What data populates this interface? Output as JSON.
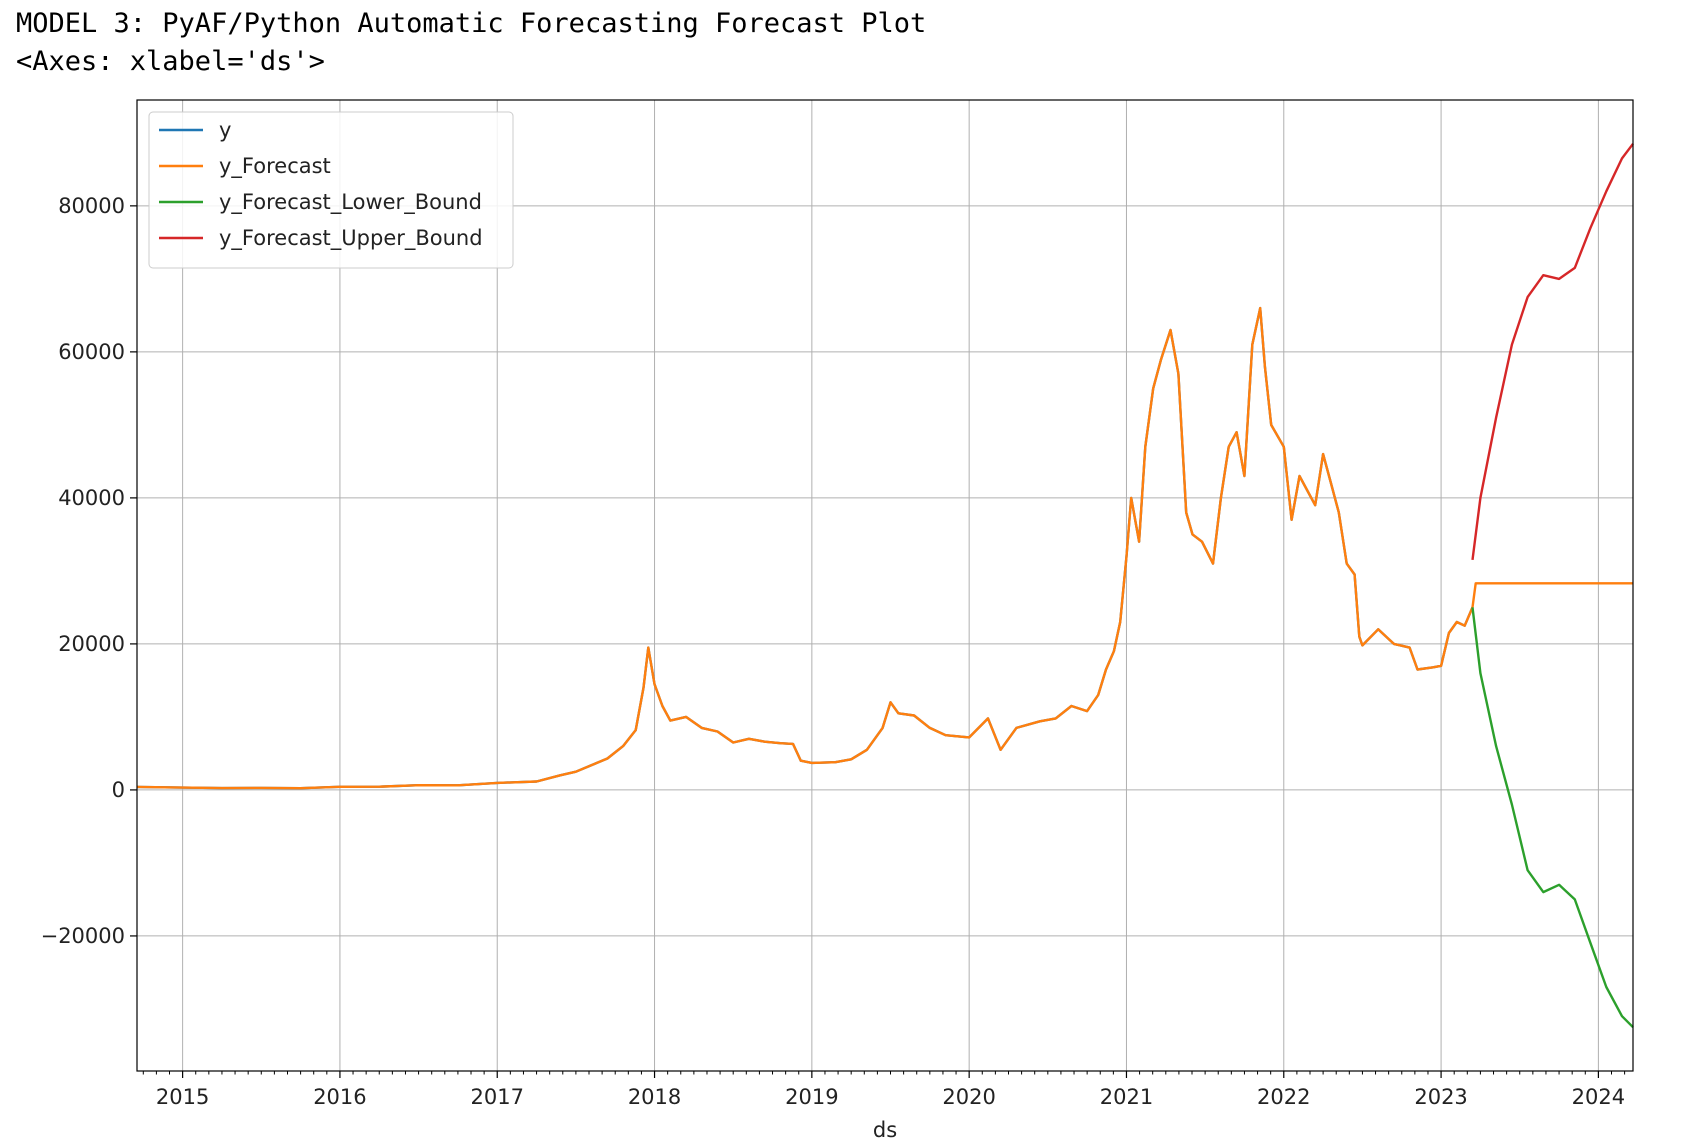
{
  "output": {
    "title": "MODEL 3: PyAF/Python Automatic Forecasting Forecast Plot",
    "repr": "<Axes: xlabel='ds'>"
  },
  "chart_data": {
    "type": "line",
    "xlabel": "ds",
    "ylabel": "",
    "xlim": [
      2014.71,
      2024.22
    ],
    "ylim": [
      -38500,
      94500
    ],
    "grid": true,
    "legend_position": "top-left",
    "x_ticks": [
      "2015",
      "2016",
      "2017",
      "2018",
      "2019",
      "2020",
      "2021",
      "2022",
      "2023",
      "2024"
    ],
    "y_ticks": [
      "-20000",
      "0",
      "20000",
      "40000",
      "60000",
      "80000"
    ],
    "y_tick_values": [
      -20000,
      0,
      20000,
      40000,
      60000,
      80000
    ],
    "series": [
      {
        "name": "y",
        "color": "#1f77b4",
        "points": [
          [
            2014.71,
            420
          ],
          [
            2015.0,
            320
          ],
          [
            2015.25,
            250
          ],
          [
            2015.5,
            270
          ],
          [
            2015.75,
            240
          ],
          [
            2016.0,
            430
          ],
          [
            2016.25,
            440
          ],
          [
            2016.5,
            650
          ],
          [
            2016.75,
            630
          ],
          [
            2017.0,
            960
          ],
          [
            2017.25,
            1150
          ],
          [
            2017.4,
            2000
          ],
          [
            2017.5,
            2500
          ],
          [
            2017.6,
            3400
          ],
          [
            2017.7,
            4300
          ],
          [
            2017.8,
            6000
          ],
          [
            2017.88,
            8200
          ],
          [
            2017.93,
            14000
          ],
          [
            2017.96,
            19500
          ],
          [
            2018.0,
            14500
          ],
          [
            2018.05,
            11500
          ],
          [
            2018.1,
            9500
          ],
          [
            2018.2,
            10000
          ],
          [
            2018.3,
            8500
          ],
          [
            2018.4,
            8000
          ],
          [
            2018.5,
            6500
          ],
          [
            2018.6,
            7000
          ],
          [
            2018.7,
            6600
          ],
          [
            2018.8,
            6400
          ],
          [
            2018.88,
            6300
          ],
          [
            2018.93,
            4000
          ],
          [
            2019.0,
            3700
          ],
          [
            2019.15,
            3800
          ],
          [
            2019.25,
            4200
          ],
          [
            2019.35,
            5500
          ],
          [
            2019.45,
            8500
          ],
          [
            2019.5,
            12000
          ],
          [
            2019.55,
            10500
          ],
          [
            2019.65,
            10200
          ],
          [
            2019.75,
            8500
          ],
          [
            2019.85,
            7500
          ],
          [
            2020.0,
            7200
          ],
          [
            2020.12,
            9800
          ],
          [
            2020.2,
            5500
          ],
          [
            2020.3,
            8500
          ],
          [
            2020.45,
            9400
          ],
          [
            2020.55,
            9800
          ],
          [
            2020.65,
            11500
          ],
          [
            2020.75,
            10800
          ],
          [
            2020.82,
            13000
          ],
          [
            2020.87,
            16500
          ],
          [
            2020.92,
            19000
          ],
          [
            2020.96,
            23000
          ],
          [
            2021.0,
            32000
          ],
          [
            2021.03,
            40000
          ],
          [
            2021.08,
            34000
          ],
          [
            2021.12,
            47000
          ],
          [
            2021.17,
            55000
          ],
          [
            2021.22,
            59000
          ],
          [
            2021.28,
            63000
          ],
          [
            2021.33,
            57000
          ],
          [
            2021.38,
            38000
          ],
          [
            2021.42,
            35000
          ],
          [
            2021.48,
            34000
          ],
          [
            2021.55,
            31000
          ],
          [
            2021.6,
            40000
          ],
          [
            2021.65,
            47000
          ],
          [
            2021.7,
            49000
          ],
          [
            2021.75,
            43000
          ],
          [
            2021.8,
            61000
          ],
          [
            2021.85,
            66000
          ],
          [
            2021.88,
            58000
          ],
          [
            2021.92,
            50000
          ],
          [
            2022.0,
            47000
          ],
          [
            2022.05,
            37000
          ],
          [
            2022.1,
            43000
          ],
          [
            2022.2,
            39000
          ],
          [
            2022.25,
            46000
          ],
          [
            2022.3,
            42000
          ],
          [
            2022.35,
            38000
          ],
          [
            2022.4,
            31000
          ],
          [
            2022.45,
            29500
          ],
          [
            2022.48,
            21000
          ],
          [
            2022.5,
            19800
          ],
          [
            2022.6,
            22000
          ],
          [
            2022.7,
            20000
          ],
          [
            2022.8,
            19500
          ],
          [
            2022.85,
            16500
          ],
          [
            2022.95,
            16800
          ],
          [
            2023.0,
            17000
          ],
          [
            2023.05,
            21500
          ],
          [
            2023.1,
            23000
          ],
          [
            2023.15,
            22500
          ],
          [
            2023.2,
            25000
          ]
        ]
      },
      {
        "name": "y_Forecast",
        "color": "#ff7f0e",
        "points": [
          [
            2014.71,
            420
          ],
          [
            2015.0,
            320
          ],
          [
            2015.25,
            250
          ],
          [
            2015.5,
            270
          ],
          [
            2015.75,
            240
          ],
          [
            2016.0,
            430
          ],
          [
            2016.25,
            440
          ],
          [
            2016.5,
            650
          ],
          [
            2016.75,
            630
          ],
          [
            2017.0,
            960
          ],
          [
            2017.25,
            1150
          ],
          [
            2017.4,
            2000
          ],
          [
            2017.5,
            2500
          ],
          [
            2017.6,
            3400
          ],
          [
            2017.7,
            4300
          ],
          [
            2017.8,
            6000
          ],
          [
            2017.88,
            8200
          ],
          [
            2017.93,
            14000
          ],
          [
            2017.96,
            19500
          ],
          [
            2018.0,
            14500
          ],
          [
            2018.05,
            11500
          ],
          [
            2018.1,
            9500
          ],
          [
            2018.2,
            10000
          ],
          [
            2018.3,
            8500
          ],
          [
            2018.4,
            8000
          ],
          [
            2018.5,
            6500
          ],
          [
            2018.6,
            7000
          ],
          [
            2018.7,
            6600
          ],
          [
            2018.8,
            6400
          ],
          [
            2018.88,
            6300
          ],
          [
            2018.93,
            4000
          ],
          [
            2019.0,
            3700
          ],
          [
            2019.15,
            3800
          ],
          [
            2019.25,
            4200
          ],
          [
            2019.35,
            5500
          ],
          [
            2019.45,
            8500
          ],
          [
            2019.5,
            12000
          ],
          [
            2019.55,
            10500
          ],
          [
            2019.65,
            10200
          ],
          [
            2019.75,
            8500
          ],
          [
            2019.85,
            7500
          ],
          [
            2020.0,
            7200
          ],
          [
            2020.12,
            9800
          ],
          [
            2020.2,
            5500
          ],
          [
            2020.3,
            8500
          ],
          [
            2020.45,
            9400
          ],
          [
            2020.55,
            9800
          ],
          [
            2020.65,
            11500
          ],
          [
            2020.75,
            10800
          ],
          [
            2020.82,
            13000
          ],
          [
            2020.87,
            16500
          ],
          [
            2020.92,
            19000
          ],
          [
            2020.96,
            23000
          ],
          [
            2021.0,
            32000
          ],
          [
            2021.03,
            40000
          ],
          [
            2021.08,
            34000
          ],
          [
            2021.12,
            47000
          ],
          [
            2021.17,
            55000
          ],
          [
            2021.22,
            59000
          ],
          [
            2021.28,
            63000
          ],
          [
            2021.33,
            57000
          ],
          [
            2021.38,
            38000
          ],
          [
            2021.42,
            35000
          ],
          [
            2021.48,
            34000
          ],
          [
            2021.55,
            31000
          ],
          [
            2021.6,
            40000
          ],
          [
            2021.65,
            47000
          ],
          [
            2021.7,
            49000
          ],
          [
            2021.75,
            43000
          ],
          [
            2021.8,
            61000
          ],
          [
            2021.85,
            66000
          ],
          [
            2021.88,
            58000
          ],
          [
            2021.92,
            50000
          ],
          [
            2022.0,
            47000
          ],
          [
            2022.05,
            37000
          ],
          [
            2022.1,
            43000
          ],
          [
            2022.2,
            39000
          ],
          [
            2022.25,
            46000
          ],
          [
            2022.3,
            42000
          ],
          [
            2022.35,
            38000
          ],
          [
            2022.4,
            31000
          ],
          [
            2022.45,
            29500
          ],
          [
            2022.48,
            21000
          ],
          [
            2022.5,
            19800
          ],
          [
            2022.6,
            22000
          ],
          [
            2022.7,
            20000
          ],
          [
            2022.8,
            19500
          ],
          [
            2022.85,
            16500
          ],
          [
            2022.95,
            16800
          ],
          [
            2023.0,
            17000
          ],
          [
            2023.05,
            21500
          ],
          [
            2023.1,
            23000
          ],
          [
            2023.15,
            22500
          ],
          [
            2023.2,
            25000
          ],
          [
            2023.22,
            28300
          ],
          [
            2024.22,
            28300
          ]
        ]
      },
      {
        "name": "y_Forecast_Lower_Bound",
        "color": "#2ca02c",
        "points": [
          [
            2023.2,
            25000
          ],
          [
            2023.25,
            16000
          ],
          [
            2023.35,
            6000
          ],
          [
            2023.45,
            -2000
          ],
          [
            2023.55,
            -11000
          ],
          [
            2023.65,
            -14000
          ],
          [
            2023.75,
            -13000
          ],
          [
            2023.85,
            -15000
          ],
          [
            2023.95,
            -21000
          ],
          [
            2024.05,
            -27000
          ],
          [
            2024.15,
            -31000
          ],
          [
            2024.22,
            -32500
          ]
        ]
      },
      {
        "name": "y_Forecast_Upper_Bound",
        "color": "#d62728",
        "points": [
          [
            2023.2,
            31500
          ],
          [
            2023.25,
            40000
          ],
          [
            2023.35,
            51000
          ],
          [
            2023.45,
            61000
          ],
          [
            2023.55,
            67500
          ],
          [
            2023.65,
            70500
          ],
          [
            2023.75,
            70000
          ],
          [
            2023.85,
            71500
          ],
          [
            2023.95,
            77000
          ],
          [
            2024.05,
            82000
          ],
          [
            2024.15,
            86500
          ],
          [
            2024.22,
            88500
          ]
        ]
      }
    ]
  }
}
